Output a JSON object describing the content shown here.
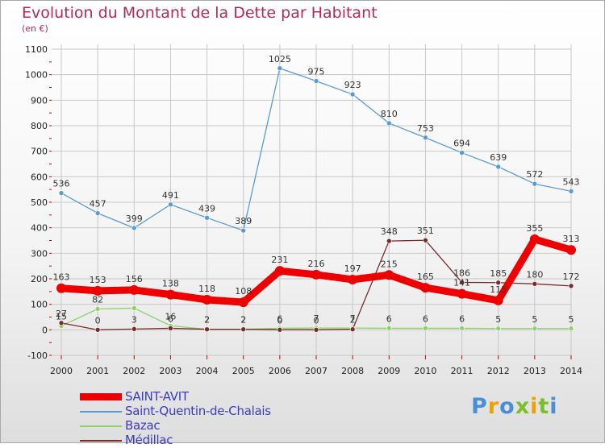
{
  "title": "Evolution du Montant de la Dette par Habitant",
  "subtitle": "(en €)",
  "logo": {
    "text": "Proxiti"
  },
  "colors": {
    "title": "#b02a5b",
    "grid": "#c8c8c8",
    "axis_marks": "#cc0000",
    "legend_text": "#3b3bbf"
  },
  "chart_data": {
    "type": "line",
    "title": "Evolution du Montant de la Dette par Habitant",
    "subtitle": "(en €)",
    "xlabel": "",
    "ylabel": "",
    "ylim": [
      -100,
      1100
    ],
    "yticks": [
      -100,
      0,
      100,
      200,
      300,
      400,
      500,
      600,
      700,
      800,
      900,
      1000,
      1100
    ],
    "grid": true,
    "legend_position": "bottom-left",
    "x": [
      "2000",
      "2001",
      "2002",
      "2003",
      "2004",
      "2005",
      "2006",
      "2007",
      "2008",
      "2009",
      "2010",
      "2011",
      "2012",
      "2013",
      "2014"
    ],
    "series": [
      {
        "name": "SAINT-AVIT",
        "color": "#ee0000",
        "values": [
          163,
          153,
          156,
          138,
          118,
          108,
          231,
          216,
          197,
          215,
          165,
          141,
          115,
          355,
          313
        ],
        "labels": [
          "163",
          "153",
          "156",
          "138",
          "118",
          "108",
          "231",
          "216",
          "197",
          "215",
          "165",
          "141",
          "115",
          "355",
          "313"
        ]
      },
      {
        "name": "Saint-Quentin-de-Chalais",
        "color": "#5b9bd5",
        "values": [
          536,
          457,
          399,
          491,
          439,
          389,
          1025,
          975,
          923,
          810,
          753,
          694,
          639,
          572,
          543
        ],
        "labels": [
          "536",
          "457",
          "399",
          "491",
          "439",
          "389",
          "1025",
          "975",
          "923",
          "810",
          "753",
          "694",
          "639",
          "572",
          "543"
        ]
      },
      {
        "name": "Bazac",
        "color": "#8fd16a",
        "values": [
          15,
          82,
          85,
          16,
          2,
          2,
          6,
          7,
          7,
          6,
          6,
          6,
          5,
          5,
          5
        ],
        "labels": [
          "15",
          "82",
          "",
          "16",
          "2",
          "2",
          "6",
          "7",
          "7",
          "6",
          "6",
          "6",
          "5",
          "5",
          "5"
        ]
      },
      {
        "name": "Médillac",
        "color": "#7b2b2b",
        "values": [
          27,
          0,
          3,
          6,
          2,
          2,
          0,
          0,
          2,
          348,
          351,
          186,
          185,
          180,
          172
        ],
        "labels": [
          "27",
          "0",
          "3",
          "6",
          "2",
          "2",
          "0",
          "0",
          "2",
          "348",
          "351",
          "186",
          "185",
          "180",
          "172"
        ]
      }
    ]
  }
}
